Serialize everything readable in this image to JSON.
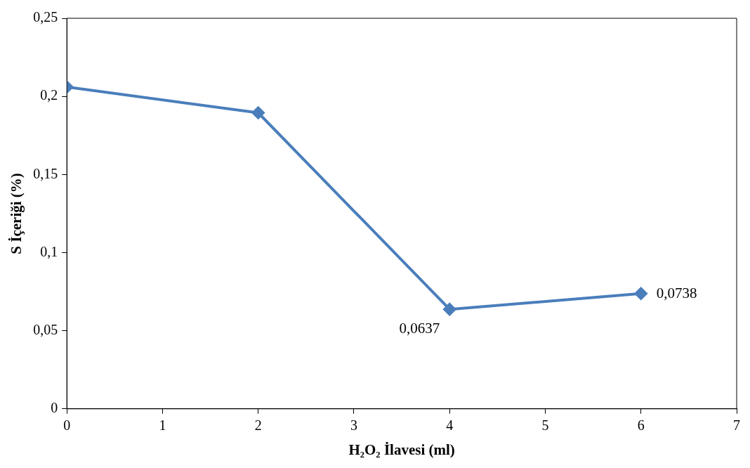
{
  "chart_data": {
    "type": "line",
    "xlabel": "H₂O₂ İlavesi (ml)",
    "ylabel": "S İçeriği (%)",
    "x": [
      0,
      2,
      4,
      6
    ],
    "series": [
      {
        "color": "#4a7ebb",
        "values": [
          0.206,
          0.1895,
          0.0637,
          0.0738
        ],
        "value_labels": [
          null,
          null,
          "0,0637",
          "0,0738"
        ]
      }
    ],
    "xlim": [
      0,
      7
    ],
    "xticks": [
      0,
      1,
      2,
      3,
      4,
      5,
      6,
      7
    ],
    "ylim": [
      0,
      0.25
    ],
    "yticks": [
      {
        "value": 0,
        "label": "0"
      },
      {
        "value": 0.05,
        "label": "0,05"
      },
      {
        "value": 0.1,
        "label": "0,1"
      },
      {
        "value": 0.15,
        "label": "0,15"
      },
      {
        "value": 0.2,
        "label": "0,2"
      },
      {
        "value": 0.25,
        "label": "0,25"
      }
    ],
    "grid": false,
    "legend": false,
    "marker": "diamond",
    "line_style": "solid"
  }
}
